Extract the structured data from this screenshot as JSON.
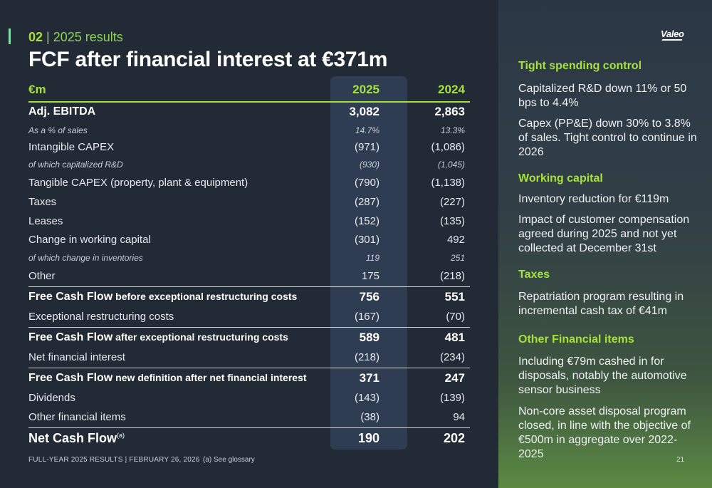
{
  "slide": {
    "section_number": "02",
    "section_separator": "|",
    "section_title": "2025 results",
    "title": "FCF after financial interest at €371m",
    "logo_text": "Valeo",
    "footer_left": "FULL-YEAR 2025 RESULTS | FEBRUARY 26, 2026",
    "footer_note": "(a) See glossary",
    "page_number": "21"
  },
  "table": {
    "header": {
      "label": "€m",
      "col_2025": "2025",
      "col_2024": "2024"
    },
    "rows": [
      {
        "label": "Adj. EBITDA",
        "v2025": "3,082",
        "v2024": "2,863"
      },
      {
        "label": "As a % of sales",
        "v2025": "14.7%",
        "v2024": "13.3%"
      },
      {
        "label": "Intangible CAPEX",
        "v2025": "(971)",
        "v2024": "(1,086)"
      },
      {
        "label": "of which capitalized R&D",
        "v2025": "(930)",
        "v2024": "(1,045)"
      },
      {
        "label": "Tangible CAPEX (property, plant & equipment)",
        "v2025": "(790)",
        "v2024": "(1,138)"
      },
      {
        "label": "Taxes",
        "v2025": "(287)",
        "v2024": "(227)"
      },
      {
        "label": "Leases",
        "v2025": "(152)",
        "v2024": "(135)"
      },
      {
        "label": "Change in working capital",
        "v2025": "(301)",
        "v2024": "492"
      },
      {
        "label": "of which change in inventories",
        "v2025": "119",
        "v2024": "251"
      },
      {
        "label": "Other",
        "v2025": "175",
        "v2024": "(218)"
      },
      {
        "label_main": "Free Cash Flow",
        "label_suffix": " before exceptional restructuring costs",
        "v2025": "756",
        "v2024": "551"
      },
      {
        "label": "Exceptional restructuring costs",
        "v2025": "(167)",
        "v2024": "(70)"
      },
      {
        "label_main": "Free Cash Flow",
        "label_suffix": " after exceptional restructuring costs",
        "v2025": "589",
        "v2024": "481"
      },
      {
        "label": "Net financial interest",
        "v2025": "(218)",
        "v2024": "(234)"
      },
      {
        "label_main": "Free Cash Flow",
        "label_suffix": " new definition after net financial interest",
        "v2025": "371",
        "v2024": "247"
      },
      {
        "label": "Dividends",
        "v2025": "(143)",
        "v2024": "(139)"
      },
      {
        "label": "Other financial items",
        "v2025": "(38)",
        "v2024": "94"
      },
      {
        "label_main": "Net Cash Flow",
        "label_sup": "(a)",
        "v2025": "190",
        "v2024": "202"
      }
    ]
  },
  "right_panel": {
    "sections": [
      {
        "heading": "Tight spending control",
        "paragraphs": [
          "Capitalized R&D down 11% or 50 bps to 4.4%",
          "Capex (PP&E) down 30% to 3.8% of sales. Tight control to continue in 2026"
        ]
      },
      {
        "heading": "Working capital",
        "paragraphs": [
          "Inventory reduction for €119m",
          "Impact of customer compensation agreed during 2025 and not yet collected at December 31st"
        ]
      },
      {
        "heading": "Taxes",
        "paragraphs": [
          "Repatriation program resulting in incremental cash tax of €41m"
        ]
      },
      {
        "heading": "Other Financial items",
        "paragraphs": [
          "Including €79m cashed in for disposals, notably the automotive sensor business",
          "Non-core asset disposal program closed, in line with the objective of €500m in aggregate over 2022-2025"
        ]
      }
    ]
  }
}
